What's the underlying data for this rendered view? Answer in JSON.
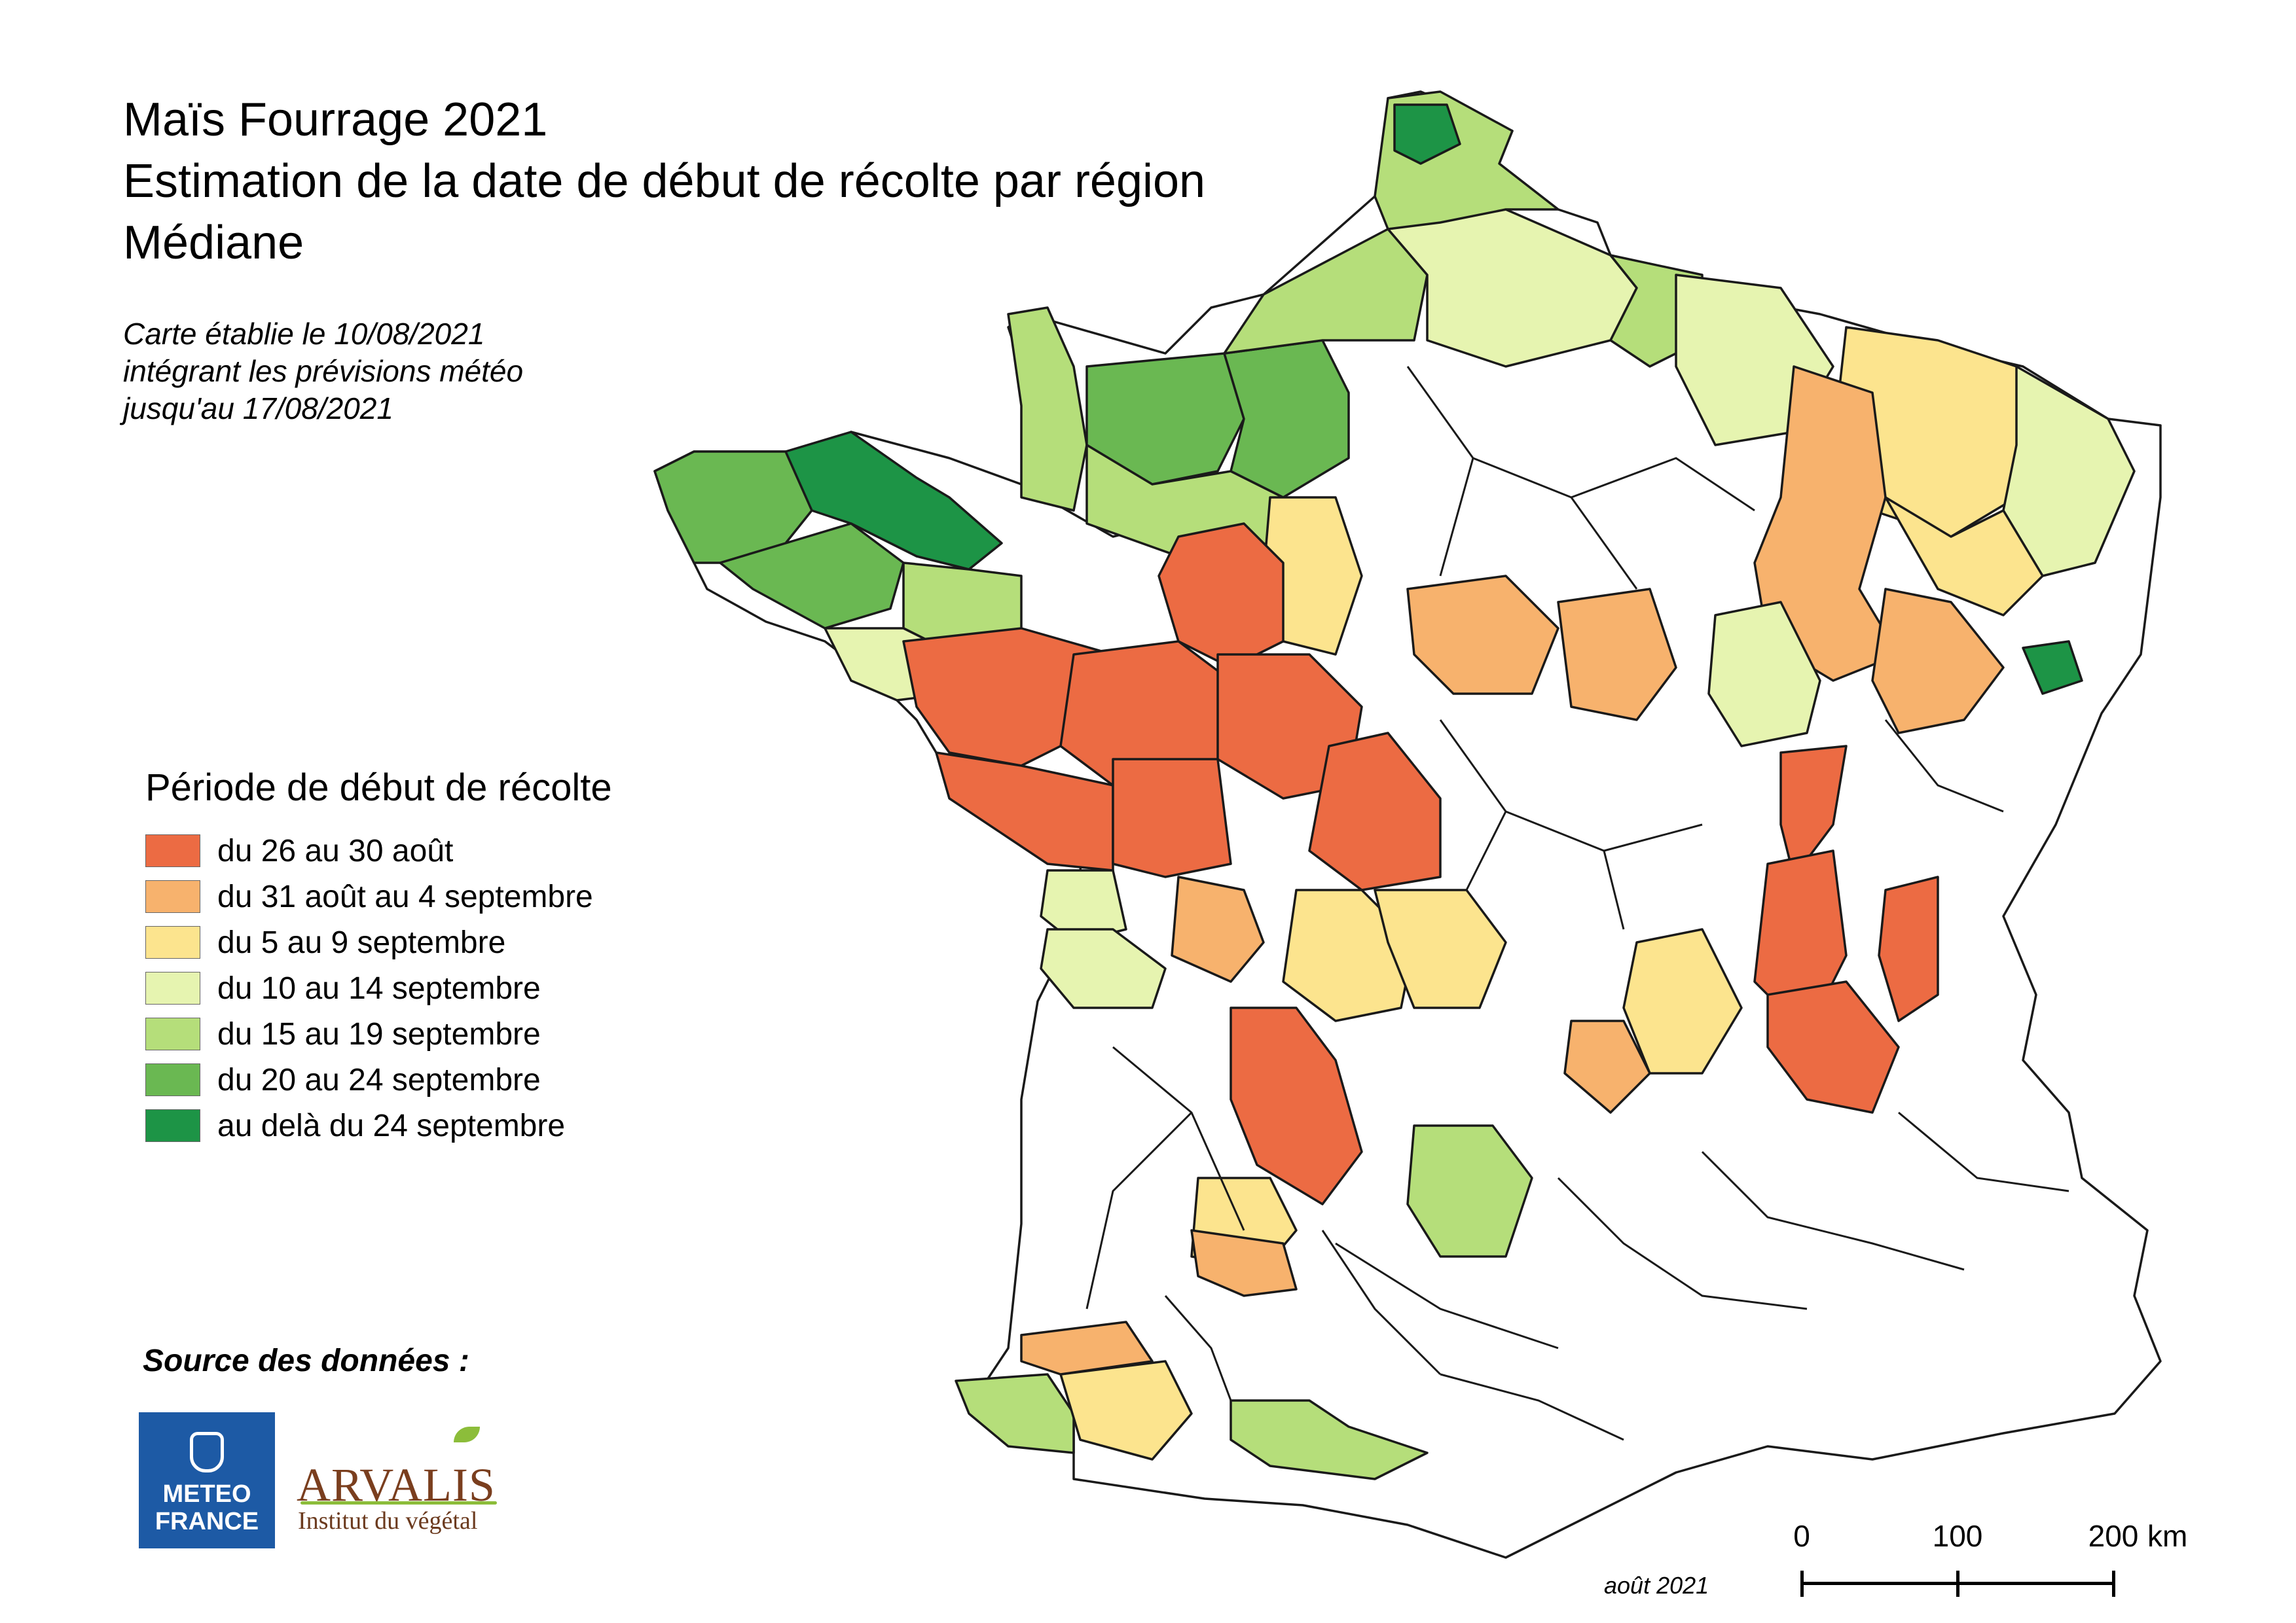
{
  "title": {
    "line1": "Maïs Fourrage 2021",
    "line2": "Estimation de la date de début de récolte par région",
    "line3": "Médiane"
  },
  "subtitle": {
    "line1": "Carte établie le 10/08/2021",
    "line2": "intégrant les prévisions météo",
    "line3": "jusqu'au 17/08/2021"
  },
  "legend": {
    "title": "Période de début de récolte",
    "items": [
      {
        "label": "du 26 au 30 août",
        "color": "#ec6b43"
      },
      {
        "label": "du 31 août au 4 septembre",
        "color": "#f7b26d"
      },
      {
        "label": "du 5 au 9 septembre",
        "color": "#fce48e"
      },
      {
        "label": "du 10 au 14 septembre",
        "color": "#e6f4b0"
      },
      {
        "label": "du 15 au 19 septembre",
        "color": "#b5de7a"
      },
      {
        "label": "du 20 au 24 septembre",
        "color": "#6ab852"
      },
      {
        "label": "au delà du 24 septembre",
        "color": "#1d9446"
      }
    ]
  },
  "source": {
    "title": "Source des données :",
    "meteo_france": {
      "line1": "METEO",
      "line2": "FRANCE",
      "color": "#1d5aa5"
    },
    "arvalis": {
      "name": "ARVALIS",
      "tagline": "Institut du végétal"
    }
  },
  "credit": "août 2021",
  "scale": {
    "ticks": [
      "0",
      "100",
      "200"
    ],
    "unit": "km"
  },
  "map": {
    "no_data_color": "#ffffff",
    "border_color": "#1a1a1a"
  }
}
